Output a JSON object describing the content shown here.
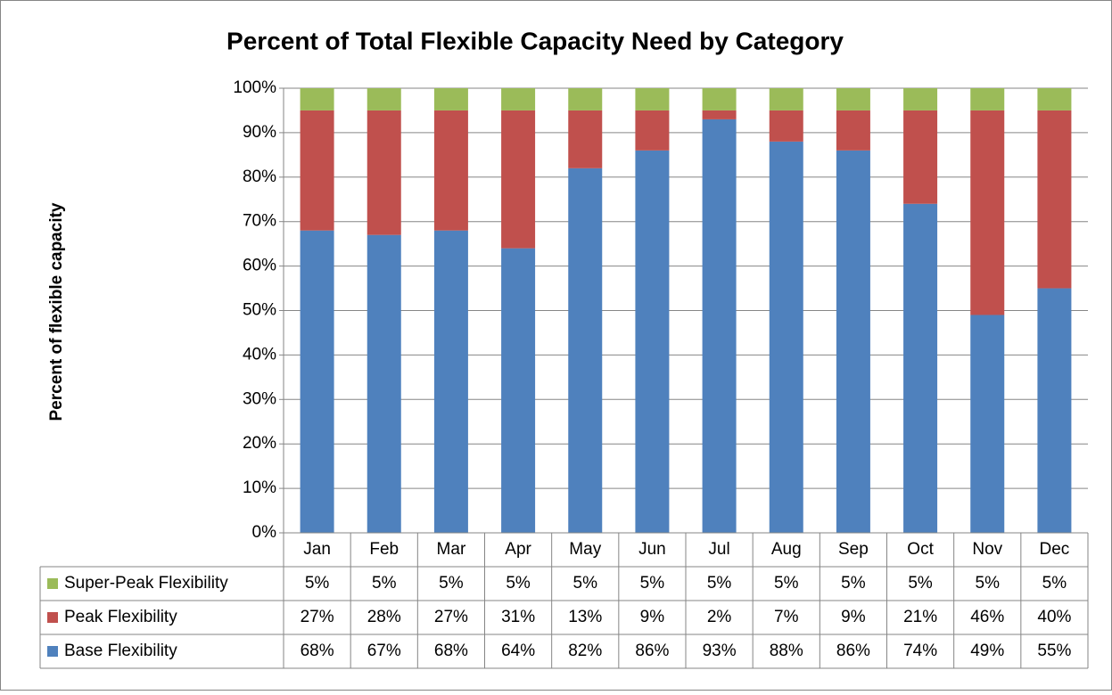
{
  "chart_data": {
    "type": "bar",
    "stacked": true,
    "title": "Percent of Total Flexible Capacity Need by Category",
    "y_label": "Percent of flexible capacity",
    "categories": [
      "Jan",
      "Feb",
      "Mar",
      "Apr",
      "May",
      "Jun",
      "Jul",
      "Aug",
      "Sep",
      "Oct",
      "Nov",
      "Dec"
    ],
    "series": [
      {
        "name": "Base Flexibility",
        "color": "#4f81bd",
        "values": [
          68,
          67,
          68,
          64,
          82,
          86,
          93,
          88,
          86,
          74,
          49,
          55
        ],
        "value_labels": [
          "68%",
          "67%",
          "68%",
          "64%",
          "82%",
          "86%",
          "93%",
          "88%",
          "86%",
          "74%",
          "49%",
          "55%"
        ]
      },
      {
        "name": "Peak Flexibility",
        "color": "#c0504d",
        "values": [
          27,
          28,
          27,
          31,
          13,
          9,
          2,
          7,
          9,
          21,
          46,
          40
        ],
        "value_labels": [
          "27%",
          "28%",
          "27%",
          "31%",
          "13%",
          "9%",
          "2%",
          "7%",
          "9%",
          "21%",
          "46%",
          "40%"
        ]
      },
      {
        "name": "Super-Peak Flexibility",
        "color": "#9bbb59",
        "values": [
          5,
          5,
          5,
          5,
          5,
          5,
          5,
          5,
          5,
          5,
          5,
          5
        ],
        "value_labels": [
          "5%",
          "5%",
          "5%",
          "5%",
          "5%",
          "5%",
          "5%",
          "5%",
          "5%",
          "5%",
          "5%",
          "5%"
        ]
      }
    ],
    "ylim": [
      0,
      100
    ],
    "yticks": [
      {
        "value": 0,
        "label": "0%"
      },
      {
        "value": 10,
        "label": "10%"
      },
      {
        "value": 20,
        "label": "20%"
      },
      {
        "value": 30,
        "label": "30%"
      },
      {
        "value": 40,
        "label": "40%"
      },
      {
        "value": 50,
        "label": "50%"
      },
      {
        "value": 60,
        "label": "60%"
      },
      {
        "value": 70,
        "label": "70%"
      },
      {
        "value": 80,
        "label": "80%"
      },
      {
        "value": 90,
        "label": "90%"
      },
      {
        "value": 100,
        "label": "100%"
      }
    ],
    "grid": true
  }
}
